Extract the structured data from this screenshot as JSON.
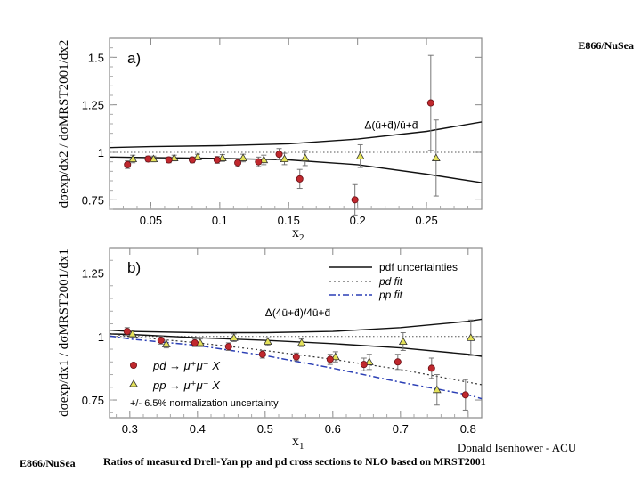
{
  "header_label": "E866/NuSea",
  "footer_label": "E866/NuSea",
  "credit": "Donald Isenhower - ACU",
  "caption": "Ratios of measured Drell-Yan pp and pd cross sections to NLO based on MRST2001",
  "colors": {
    "pd_marker": "#c0282d",
    "pp_marker": "#e4e25a",
    "pp_fit": "#2b3fb5"
  },
  "chart_data": [
    {
      "id": "a",
      "type": "scatter",
      "panel_label": "a)",
      "ylabel": "dσexp/dx2 / dσMRST2001/dx2",
      "xlabel": "x2",
      "xlim": [
        0.02,
        0.29
      ],
      "ylim": [
        0.7,
        1.6
      ],
      "xticks": [
        0.05,
        0.1,
        0.15,
        0.2,
        0.25
      ],
      "xtick_labels": [
        "0.05",
        "0.1",
        "0.15",
        "0.2",
        "0.25"
      ],
      "yticks": [
        0.75,
        1,
        1.25,
        1.5
      ],
      "ytick_labels": [
        "0.75",
        "1",
        "1.25",
        "1.5"
      ],
      "annotation": "Δ(ū+d̄)/ū+d̄",
      "reference_line": 1,
      "uncertainty_band": {
        "x": [
          0.02,
          0.05,
          0.1,
          0.15,
          0.2,
          0.25,
          0.29
        ],
        "upper": [
          1.025,
          1.03,
          1.035,
          1.045,
          1.07,
          1.11,
          1.16
        ],
        "lower": [
          0.975,
          0.972,
          0.968,
          0.96,
          0.935,
          0.885,
          0.84
        ]
      },
      "series": [
        {
          "name": "pd",
          "marker": "circle",
          "x": [
            0.035,
            0.05,
            0.065,
            0.082,
            0.1,
            0.115,
            0.13,
            0.145,
            0.16,
            0.2,
            0.255
          ],
          "y": [
            0.935,
            0.965,
            0.96,
            0.96,
            0.96,
            0.945,
            0.95,
            0.99,
            0.86,
            0.75,
            1.26
          ],
          "err": [
            0.02,
            0.015,
            0.015,
            0.015,
            0.018,
            0.02,
            0.025,
            0.03,
            0.05,
            0.08,
            0.25
          ]
        },
        {
          "name": "pp",
          "marker": "triangle",
          "x": [
            0.035,
            0.05,
            0.065,
            0.082,
            0.1,
            0.115,
            0.13,
            0.145,
            0.16,
            0.2,
            0.255
          ],
          "y": [
            0.965,
            0.965,
            0.97,
            0.975,
            0.97,
            0.97,
            0.96,
            0.965,
            0.97,
            0.98,
            0.97
          ],
          "err": [
            0.02,
            0.015,
            0.015,
            0.015,
            0.018,
            0.02,
            0.025,
            0.03,
            0.04,
            0.06,
            0.2
          ]
        }
      ]
    },
    {
      "id": "b",
      "type": "scatter",
      "panel_label": "b)",
      "ylabel": "dσexp/dx1 / dσMRST2001/dx1",
      "xlabel": "x1",
      "xlim": [
        0.27,
        0.82
      ],
      "ylim": [
        0.68,
        1.35
      ],
      "xticks": [
        0.3,
        0.4,
        0.5,
        0.6,
        0.7,
        0.8
      ],
      "xtick_labels": [
        "0.3",
        "0.4",
        "0.5",
        "0.6",
        "0.7",
        "0.8"
      ],
      "yticks": [
        0.75,
        1,
        1.25
      ],
      "ytick_labels": [
        "0.75",
        "1",
        "1.25"
      ],
      "annotation": "Δ(4ū+d̄)/4ū+d̄",
      "reference_line": 1,
      "legend_top": [
        "pdf uncertainties",
        "pd fit",
        "pp fit"
      ],
      "legend_bottom": [
        "pd → μ⁺μ⁻ X",
        "pp → μ⁺μ⁻ X"
      ],
      "norm_note": "+/- 6.5% normalization uncertainty",
      "uncertainty_band": {
        "x": [
          0.27,
          0.3,
          0.4,
          0.5,
          0.6,
          0.7,
          0.8,
          0.82
        ],
        "upper": [
          1.025,
          1.02,
          1.015,
          1.015,
          1.02,
          1.035,
          1.06,
          1.068
        ],
        "lower": [
          1.01,
          1.008,
          0.995,
          0.985,
          0.972,
          0.955,
          0.93,
          0.922
        ]
      },
      "fits": [
        {
          "name": "pd fit",
          "x": [
            0.27,
            0.3,
            0.4,
            0.5,
            0.6,
            0.7,
            0.8,
            0.82
          ],
          "y": [
            1.012,
            1.0,
            0.975,
            0.945,
            0.91,
            0.87,
            0.82,
            0.81
          ]
        },
        {
          "name": "pp fit",
          "x": [
            0.27,
            0.3,
            0.4,
            0.5,
            0.6,
            0.7,
            0.8,
            0.82
          ],
          "y": [
            1.002,
            0.99,
            0.965,
            0.925,
            0.875,
            0.82,
            0.77,
            0.755
          ]
        }
      ],
      "series": [
        {
          "name": "pd",
          "marker": "circle",
          "x": [
            0.3,
            0.35,
            0.4,
            0.45,
            0.5,
            0.55,
            0.6,
            0.65,
            0.7,
            0.75,
            0.8
          ],
          "y": [
            1.02,
            0.985,
            0.975,
            0.96,
            0.93,
            0.92,
            0.91,
            0.89,
            0.9,
            0.875,
            0.77
          ],
          "err": [
            0.015,
            0.015,
            0.015,
            0.015,
            0.015,
            0.015,
            0.02,
            0.025,
            0.03,
            0.04,
            0.06
          ]
        },
        {
          "name": "pp",
          "marker": "triangle",
          "x": [
            0.3,
            0.35,
            0.4,
            0.45,
            0.5,
            0.55,
            0.6,
            0.65,
            0.7,
            0.75,
            0.8
          ],
          "y": [
            1.01,
            0.97,
            0.975,
            0.995,
            0.98,
            0.975,
            0.92,
            0.9,
            0.98,
            0.79,
            0.995
          ],
          "err": [
            0.015,
            0.015,
            0.015,
            0.015,
            0.015,
            0.015,
            0.02,
            0.03,
            0.035,
            0.06,
            0.07
          ]
        }
      ]
    }
  ]
}
